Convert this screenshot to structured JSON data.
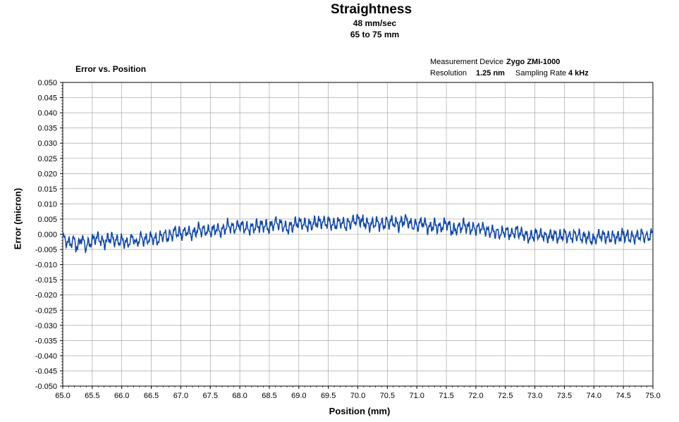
{
  "header": {
    "title": "Straightness",
    "subtitle_speed": "48 mm/sec",
    "subtitle_range": "65 to 75 mm"
  },
  "panel": {
    "title": "Error vs. Position",
    "device_label": "Measurement Device",
    "device_value": "Zygo ZMI-1000",
    "resolution_label": "Resolution",
    "resolution_value": "1.25 nm",
    "sampling_label": "Sampling Rate",
    "sampling_value": "4 kHz"
  },
  "colors": {
    "series": "#0b46b4",
    "grid": "#9a9a9a",
    "axis": "#000000"
  },
  "chart_data": {
    "type": "line",
    "title": "Straightness",
    "xlabel": "Position (mm)",
    "ylabel": "Error (micron)",
    "xlim": [
      65.0,
      75.0
    ],
    "ylim": [
      -0.05,
      0.05
    ],
    "xticks": [
      "65.0",
      "65.5",
      "66.0",
      "66.5",
      "67.0",
      "67.5",
      "68.0",
      "68.5",
      "69.0",
      "69.5",
      "70.0",
      "70.5",
      "71.0",
      "71.5",
      "72.0",
      "72.5",
      "73.0",
      "73.5",
      "74.0",
      "74.5",
      "75.0"
    ],
    "yticks": [
      "0.050",
      "0.045",
      "0.040",
      "0.035",
      "0.030",
      "0.025",
      "0.020",
      "0.015",
      "0.010",
      "0.005",
      "0.000",
      "-0.005",
      "-0.010",
      "-0.015",
      "-0.020",
      "-0.025",
      "-0.030",
      "-0.035",
      "-0.040",
      "-0.045",
      "-0.050"
    ],
    "grid": true,
    "series": [
      {
        "name": "Error",
        "x": [
          65.0,
          65.1,
          65.2,
          65.25,
          65.3,
          65.4,
          65.5,
          65.6,
          65.7,
          65.8,
          65.9,
          66.0,
          66.1,
          66.2,
          66.25,
          66.3,
          66.4,
          66.5,
          66.6,
          66.7,
          66.8,
          66.9,
          67.0,
          67.1,
          67.2,
          67.3,
          67.4,
          67.5,
          67.6,
          67.7,
          67.8,
          67.9,
          68.0,
          68.1,
          68.2,
          68.3,
          68.4,
          68.5,
          68.6,
          68.7,
          68.8,
          68.9,
          69.0,
          69.1,
          69.2,
          69.3,
          69.4,
          69.5,
          69.6,
          69.7,
          69.8,
          69.9,
          70.0,
          70.1,
          70.2,
          70.3,
          70.4,
          70.5,
          70.6,
          70.7,
          70.8,
          70.9,
          71.0,
          71.1,
          71.2,
          71.3,
          71.4,
          71.5,
          71.6,
          71.7,
          71.8,
          71.9,
          72.0,
          72.1,
          72.2,
          72.3,
          72.4,
          72.5,
          72.6,
          72.7,
          72.8,
          72.9,
          73.0,
          73.1,
          73.2,
          73.3,
          73.4,
          73.5,
          73.6,
          73.7,
          73.8,
          73.9,
          74.0,
          74.1,
          74.2,
          74.3,
          74.4,
          74.5,
          74.6,
          74.7,
          74.8,
          74.9,
          75.0
        ],
        "values": [
          -0.001,
          -0.003,
          -0.002,
          -0.005,
          -0.001,
          -0.004,
          -0.002,
          -0.001,
          -0.003,
          -0.001,
          -0.002,
          -0.002,
          -0.003,
          -0.001,
          -0.004,
          -0.001,
          -0.002,
          -0.001,
          -0.002,
          0.0,
          -0.001,
          0.001,
          0.0,
          0.001,
          0.0,
          0.002,
          0.001,
          0.001,
          0.002,
          0.001,
          0.003,
          0.002,
          0.003,
          0.002,
          0.002,
          0.003,
          0.003,
          0.002,
          0.004,
          0.003,
          0.002,
          0.003,
          0.004,
          0.003,
          0.003,
          0.004,
          0.004,
          0.004,
          0.003,
          0.004,
          0.003,
          0.004,
          0.005,
          0.004,
          0.003,
          0.004,
          0.003,
          0.004,
          0.004,
          0.003,
          0.005,
          0.003,
          0.003,
          0.004,
          0.002,
          0.003,
          0.002,
          0.004,
          0.001,
          0.002,
          0.003,
          0.002,
          0.002,
          0.002,
          0.001,
          0.001,
          0.0,
          0.001,
          0.0,
          0.001,
          0.0,
          -0.001,
          0.0,
          0.0,
          -0.001,
          0.0,
          -0.001,
          0.0,
          -0.001,
          0.0,
          -0.001,
          -0.001,
          -0.002,
          0.0,
          -0.001,
          -0.001,
          -0.001,
          0.0,
          -0.001,
          -0.001,
          0.0,
          -0.001,
          0.0
        ]
      }
    ]
  }
}
